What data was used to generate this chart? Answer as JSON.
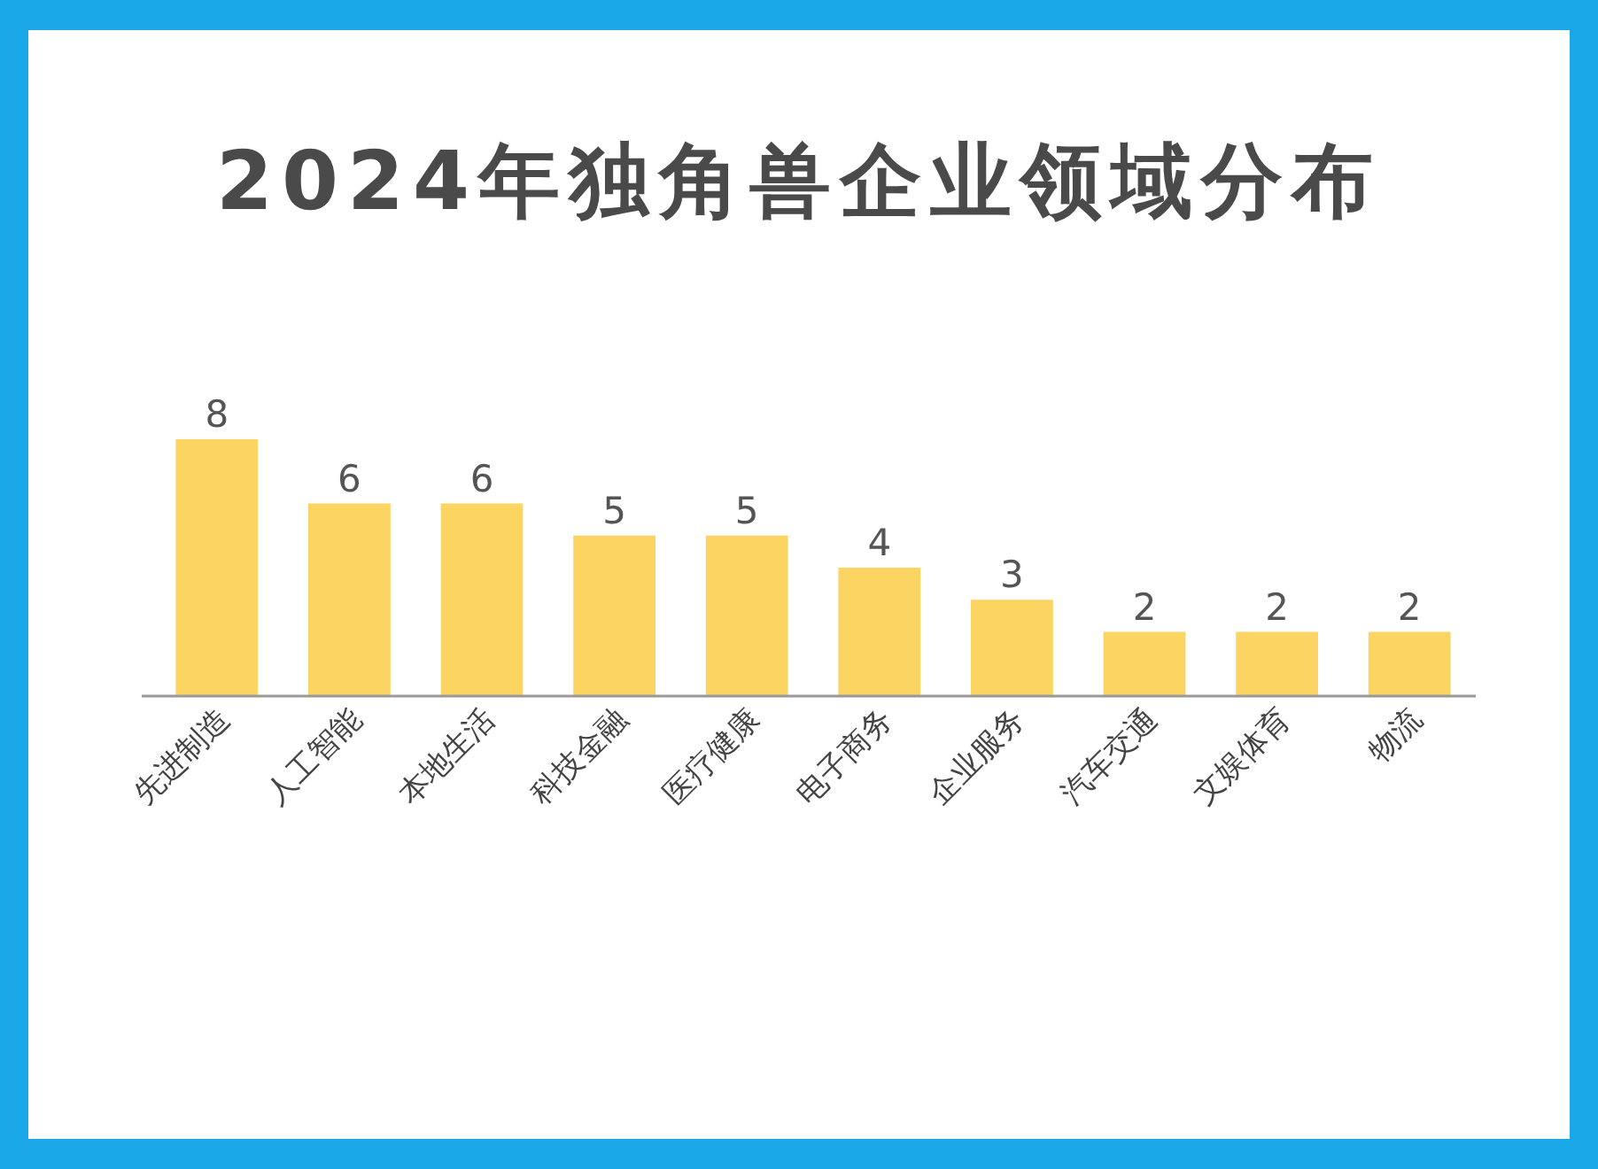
{
  "chart_data": {
    "type": "bar",
    "title": "2024年独角兽企业领域分布",
    "categories": [
      "先进制造",
      "人工智能",
      "本地生活",
      "科技金融",
      "医疗健康",
      "电子商务",
      "企业服务",
      "汽车交通",
      "文娱体育",
      "物流"
    ],
    "values": [
      8,
      6,
      6,
      5,
      5,
      4,
      3,
      2,
      2,
      2
    ],
    "color": "#fcd462",
    "data_labels": true
  }
}
